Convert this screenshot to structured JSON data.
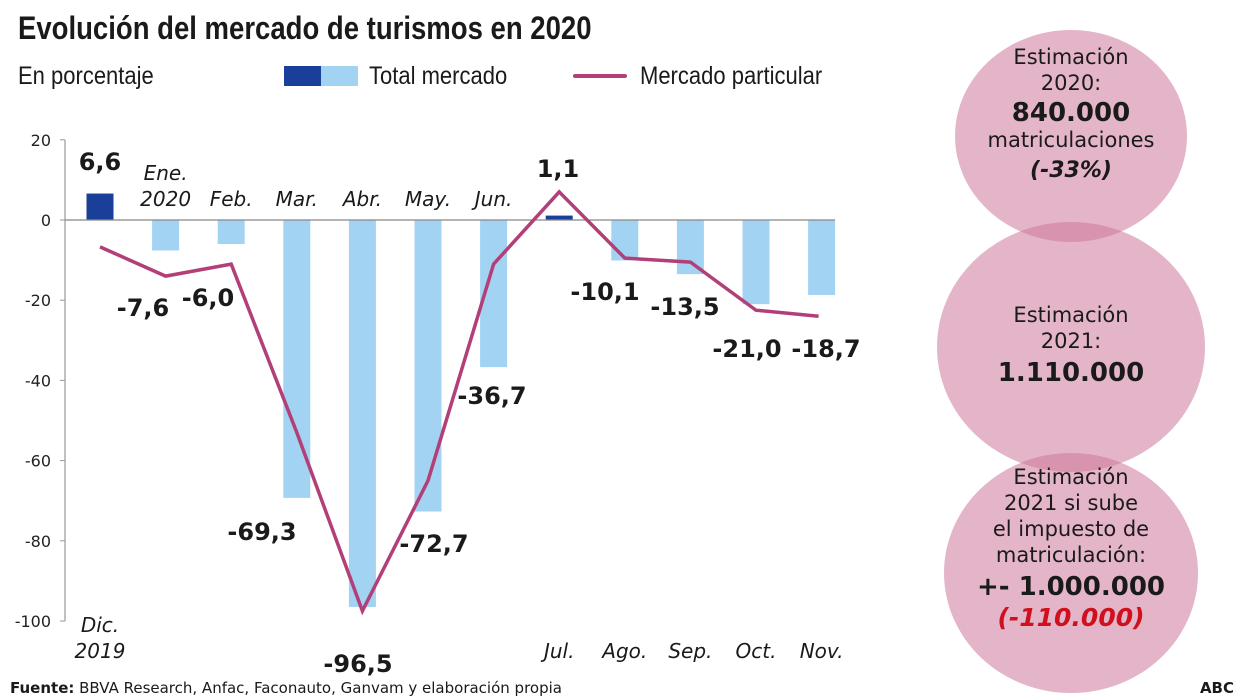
{
  "title": "Evolución del mercado de turismos en 2020",
  "subtitle": "En porcentaje",
  "chart_data": {
    "type": "bar",
    "title": "Evolución del mercado de turismos en 2020",
    "ylabel": "En porcentaje",
    "ylim": [
      -100,
      20
    ],
    "yticks": [
      "20",
      "0",
      "-20",
      "-40",
      "-60",
      "-80",
      "-100"
    ],
    "ytick_values": [
      20,
      0,
      -20,
      -40,
      -60,
      -80,
      -100
    ],
    "categories": [
      {
        "line1": "Dic.",
        "line2": "2019"
      },
      {
        "line1": "Ene.",
        "line2": "2020"
      },
      {
        "line1": "Feb.",
        "line2": ""
      },
      {
        "line1": "Mar.",
        "line2": ""
      },
      {
        "line1": "Abr.",
        "line2": ""
      },
      {
        "line1": "May.",
        "line2": ""
      },
      {
        "line1": "Jun.",
        "line2": ""
      },
      {
        "line1": "Jul.",
        "line2": ""
      },
      {
        "line1": "Ago.",
        "line2": ""
      },
      {
        "line1": "Sep.",
        "line2": ""
      },
      {
        "line1": "Oct.",
        "line2": ""
      },
      {
        "line1": "Nov.",
        "line2": ""
      }
    ],
    "series": [
      {
        "name": "Total mercado",
        "type": "bar",
        "values": [
          6.6,
          -7.6,
          -6.0,
          -69.3,
          -96.5,
          -72.7,
          -36.7,
          1.1,
          -10.1,
          -13.5,
          -21.0,
          -18.7
        ],
        "labels": [
          "6,6",
          "-7,6",
          "-6,0",
          "-69,3",
          "-96,5",
          "-72,7",
          "-36,7",
          "1,1",
          "-10,1",
          "-13,5",
          "-21,0",
          "-18,7"
        ],
        "colors": {
          "positive": "#1a3f99",
          "negative": "#a3d3f2"
        }
      },
      {
        "name": "Mercado particular",
        "type": "line",
        "values": [
          -6.7,
          -14,
          -11,
          -53,
          -97.5,
          -65,
          -11,
          7,
          -9.5,
          -10.5,
          -22.5,
          -24
        ],
        "color": "#b23f78"
      }
    ],
    "grid": false,
    "legend": "top"
  },
  "legend": {
    "total": "Total mercado",
    "particular": "Mercado particular"
  },
  "bubbles": [
    {
      "l1": "Estimación",
      "l2": "2020:",
      "value": "840.000",
      "l3": "matriculaciones",
      "note": "(-33%)"
    },
    {
      "l1": "Estimación",
      "l2": "2021:",
      "value": "1.110.000"
    },
    {
      "l1": "Estimación",
      "l2": "2021 si sube",
      "l3": "el impuesto de",
      "l4": "matriculación:",
      "value": "+- 1.000.000",
      "note": "(-110.000)",
      "note_color": "#d0101c"
    }
  ],
  "footer": {
    "label": "Fuente:",
    "text": " BBVA Research, Anfac, Faconauto, Ganvam y elaboración propia"
  },
  "brand": "ABC"
}
